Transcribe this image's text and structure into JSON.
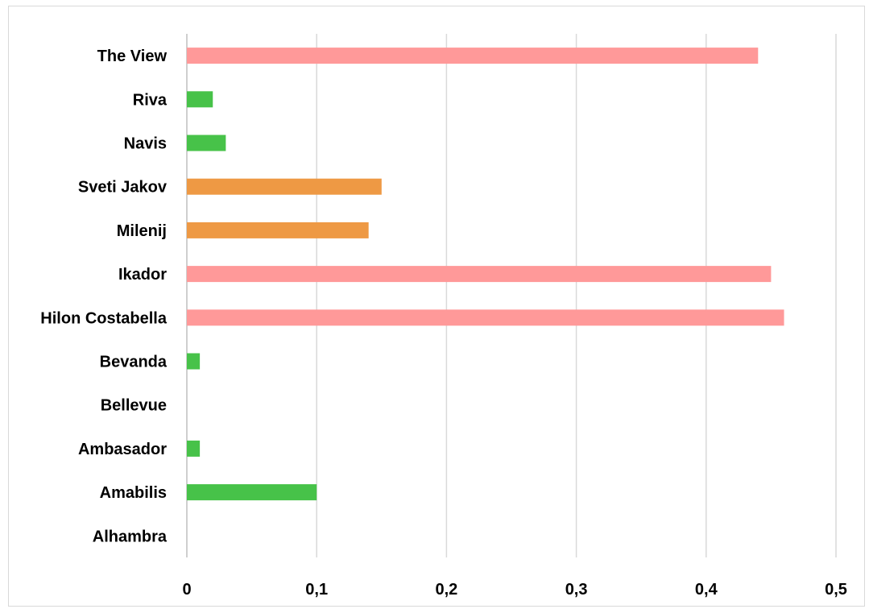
{
  "chart_data": {
    "type": "bar",
    "orientation": "horizontal",
    "title": "",
    "xlabel": "",
    "ylabel": "",
    "xlim": [
      0,
      0.5
    ],
    "grid": true,
    "legend": "none",
    "x_ticks": [
      "0",
      "0,1",
      "0,2",
      "0,3",
      "0,4",
      "0,5"
    ],
    "categories": [
      "The View",
      "Riva",
      "Navis",
      "Sveti Jakov",
      "Milenij",
      "Ikador",
      "Hilon Costabella",
      "Bevanda",
      "Bellevue",
      "Ambasador",
      "Amabilis",
      "Alhambra"
    ],
    "values": [
      0.44,
      0.02,
      0.03,
      0.15,
      0.14,
      0.45,
      0.46,
      0.01,
      0,
      0.01,
      0.1,
      0
    ],
    "bar_colors": [
      "#ff9999",
      "#47c249",
      "#47c249",
      "#ee9944",
      "#ee9944",
      "#ff9999",
      "#ff9999",
      "#47c249",
      "#47c249",
      "#47c249",
      "#47c249",
      "#47c249"
    ],
    "gridline_color": "#d9d9d9",
    "axis_color": "#bfbfbf"
  }
}
